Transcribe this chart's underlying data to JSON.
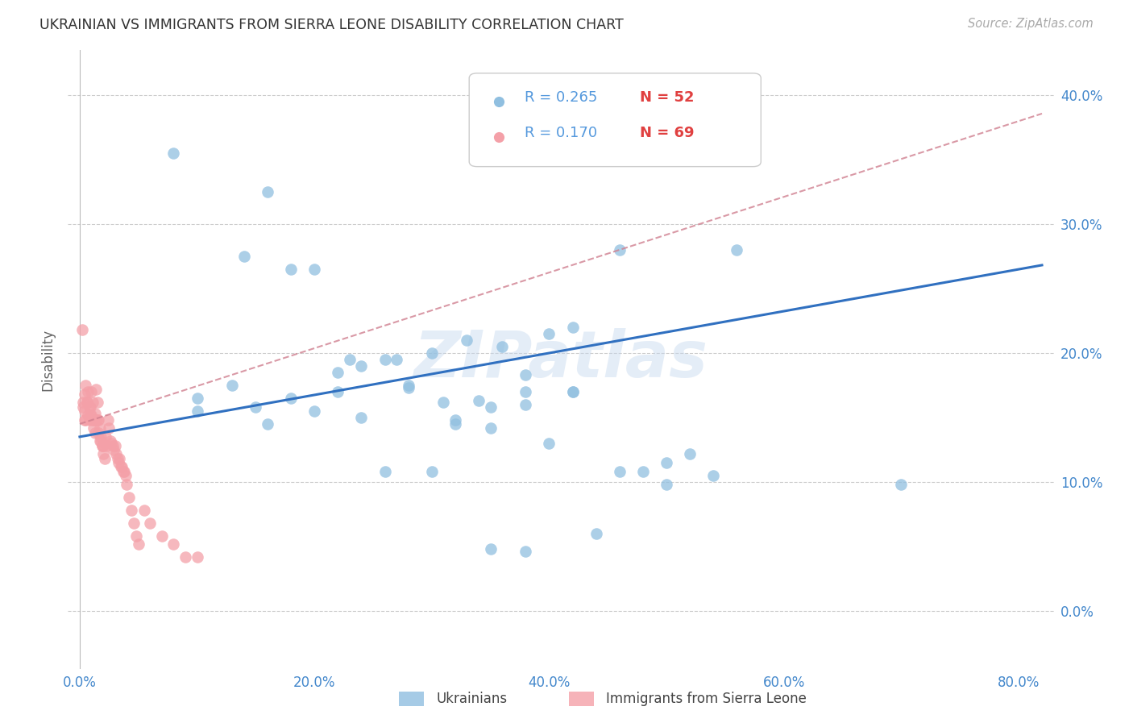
{
  "title": "UKRAINIAN VS IMMIGRANTS FROM SIERRA LEONE DISABILITY CORRELATION CHART",
  "source": "Source: ZipAtlas.com",
  "xlabel_ticks": [
    "0.0%",
    "20.0%",
    "40.0%",
    "60.0%",
    "80.0%"
  ],
  "xlabel_tick_vals": [
    0.0,
    0.2,
    0.4,
    0.6,
    0.8
  ],
  "ylabel_ticks": [
    "0.0%",
    "10.0%",
    "20.0%",
    "30.0%",
    "40.0%"
  ],
  "ylabel_tick_vals": [
    0.0,
    0.1,
    0.2,
    0.3,
    0.4
  ],
  "xlim": [
    -0.01,
    0.83
  ],
  "ylim": [
    -0.045,
    0.435
  ],
  "blue_color": "#90bfe0",
  "pink_color": "#f4a0a8",
  "blue_line_color": "#3070c0",
  "pink_line_color": "#d08090",
  "watermark": "ZIPatlas",
  "legend_r_blue": "R = 0.265",
  "legend_n_blue": "N = 52",
  "legend_r_pink": "R = 0.170",
  "legend_n_pink": "N = 69",
  "blue_scatter_x": [
    0.08,
    0.14,
    0.16,
    0.2,
    0.23,
    0.26,
    0.1,
    0.13,
    0.16,
    0.18,
    0.2,
    0.22,
    0.24,
    0.27,
    0.3,
    0.33,
    0.36,
    0.38,
    0.4,
    0.28,
    0.32,
    0.35,
    0.4,
    0.42,
    0.28,
    0.31,
    0.35,
    0.38,
    0.1,
    0.15,
    0.18,
    0.22,
    0.26,
    0.3,
    0.34,
    0.38,
    0.42,
    0.46,
    0.5,
    0.54,
    0.24,
    0.48,
    0.52,
    0.44,
    0.56,
    0.7,
    0.42,
    0.46,
    0.5,
    0.38,
    0.35,
    0.32
  ],
  "blue_scatter_y": [
    0.355,
    0.275,
    0.325,
    0.265,
    0.195,
    0.195,
    0.165,
    0.175,
    0.145,
    0.165,
    0.155,
    0.185,
    0.19,
    0.195,
    0.2,
    0.21,
    0.205,
    0.17,
    0.13,
    0.175,
    0.148,
    0.158,
    0.215,
    0.22,
    0.173,
    0.162,
    0.142,
    0.16,
    0.155,
    0.158,
    0.265,
    0.17,
    0.108,
    0.108,
    0.163,
    0.183,
    0.17,
    0.108,
    0.115,
    0.105,
    0.15,
    0.108,
    0.122,
    0.06,
    0.28,
    0.098,
    0.17,
    0.28,
    0.098,
    0.046,
    0.048,
    0.145
  ],
  "pink_scatter_x": [
    0.004,
    0.005,
    0.006,
    0.007,
    0.008,
    0.009,
    0.01,
    0.011,
    0.012,
    0.013,
    0.014,
    0.015,
    0.016,
    0.017,
    0.018,
    0.019,
    0.02,
    0.021,
    0.022,
    0.023,
    0.024,
    0.025,
    0.026,
    0.027,
    0.028,
    0.029,
    0.03,
    0.031,
    0.032,
    0.033,
    0.034,
    0.035,
    0.036,
    0.037,
    0.038,
    0.039,
    0.003,
    0.004,
    0.005,
    0.006,
    0.007,
    0.008,
    0.009,
    0.01,
    0.011,
    0.012,
    0.013,
    0.014,
    0.015,
    0.016,
    0.017,
    0.018,
    0.019,
    0.02,
    0.04,
    0.042,
    0.044,
    0.046,
    0.048,
    0.05,
    0.055,
    0.06,
    0.07,
    0.08,
    0.09,
    0.1,
    0.002,
    0.003,
    0.004
  ],
  "pink_scatter_y": [
    0.155,
    0.148,
    0.162,
    0.17,
    0.158,
    0.152,
    0.17,
    0.162,
    0.148,
    0.153,
    0.172,
    0.162,
    0.148,
    0.142,
    0.132,
    0.128,
    0.122,
    0.118,
    0.135,
    0.128,
    0.148,
    0.142,
    0.132,
    0.13,
    0.128,
    0.125,
    0.128,
    0.122,
    0.118,
    0.115,
    0.118,
    0.112,
    0.112,
    0.108,
    0.108,
    0.105,
    0.162,
    0.168,
    0.175,
    0.162,
    0.152,
    0.148,
    0.158,
    0.152,
    0.148,
    0.142,
    0.138,
    0.148,
    0.148,
    0.138,
    0.132,
    0.135,
    0.128,
    0.128,
    0.098,
    0.088,
    0.078,
    0.068,
    0.058,
    0.052,
    0.078,
    0.068,
    0.058,
    0.052,
    0.042,
    0.042,
    0.218,
    0.158,
    0.148
  ],
  "blue_trend": [
    0.0,
    0.8,
    0.135,
    0.265
  ],
  "pink_trend": [
    0.0,
    0.8,
    0.145,
    0.38
  ]
}
